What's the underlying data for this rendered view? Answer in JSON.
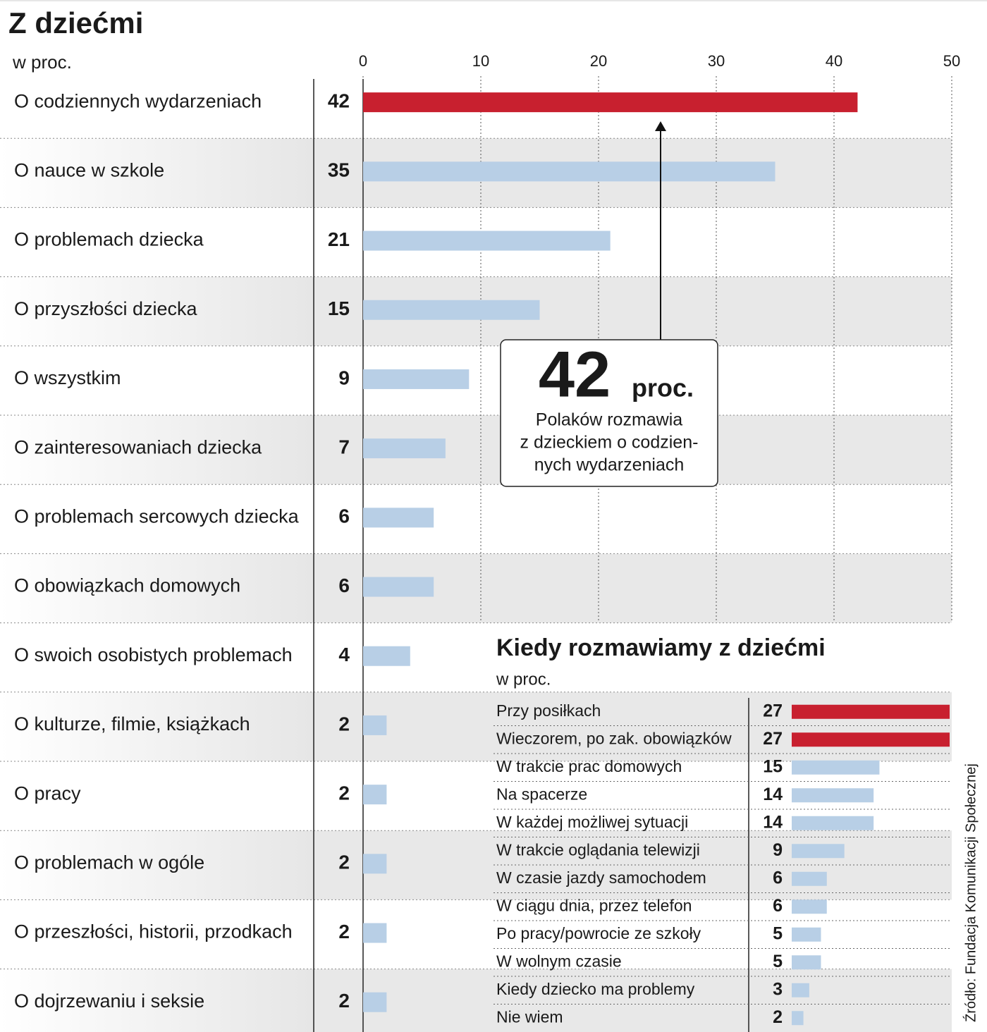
{
  "chart_data": [
    {
      "type": "hbar",
      "title": "Z dziećmi",
      "subtitle": "w proc.",
      "categories": [
        "O codziennych wydarzeniach",
        "O nauce w szkole",
        "O problemach dziecka",
        "O przyszłości dziecka",
        "O wszystkim",
        "O zainteresowaniach dziecka",
        "O problemach sercowych dziecka",
        "O obowiązkach domowych",
        "O swoich osobistych problemach",
        "O kulturze, filmie, książkach",
        "O pracy",
        "O problemach w ogóle",
        "O przeszłości, historii, przodkach",
        "O dojrzewaniu i seksie"
      ],
      "values": [
        42,
        35,
        21,
        15,
        9,
        7,
        6,
        6,
        4,
        2,
        2,
        2,
        2,
        2
      ],
      "colors": [
        "#c8202f",
        "#b8cfe6",
        "#b8cfe6",
        "#b8cfe6",
        "#b8cfe6",
        "#b8cfe6",
        "#b8cfe6",
        "#b8cfe6",
        "#b8cfe6",
        "#b8cfe6",
        "#b8cfe6",
        "#b8cfe6",
        "#b8cfe6",
        "#b8cfe6"
      ],
      "xlim": [
        0,
        50
      ],
      "xticks": [
        0,
        10,
        20,
        30,
        40,
        50
      ],
      "grid": true,
      "annotation": {
        "value": "42",
        "unit": "proc.",
        "lines": [
          "Polaków rozmawia",
          "z dzieckiem o codzien-",
          "nych wydarzeniach"
        ]
      }
    },
    {
      "type": "hbar",
      "title": "Kiedy rozmawiamy z dziećmi",
      "subtitle": "w proc.",
      "categories": [
        "Przy posiłkach",
        "Wieczorem, po zak. obowiązków",
        "W trakcie prac domowych",
        "Na spacerze",
        "W każdej możliwej sytuacji",
        "W trakcie oglądania telewizji",
        "W czasie jazdy samochodem",
        "W ciągu dnia, przez telefon",
        "Po pracy/powrocie ze szkoły",
        "W wolnym czasie",
        "Kiedy dziecko ma problemy",
        "Nie wiem"
      ],
      "values": [
        27,
        27,
        15,
        14,
        14,
        9,
        6,
        6,
        5,
        5,
        3,
        2
      ],
      "colors": [
        "#c8202f",
        "#c8202f",
        "#b8cfe6",
        "#b8cfe6",
        "#b8cfe6",
        "#b8cfe6",
        "#b8cfe6",
        "#b8cfe6",
        "#b8cfe6",
        "#b8cfe6",
        "#b8cfe6",
        "#b8cfe6"
      ]
    }
  ],
  "source": "Źródło: Fundacja Komunikacji Społecznej"
}
